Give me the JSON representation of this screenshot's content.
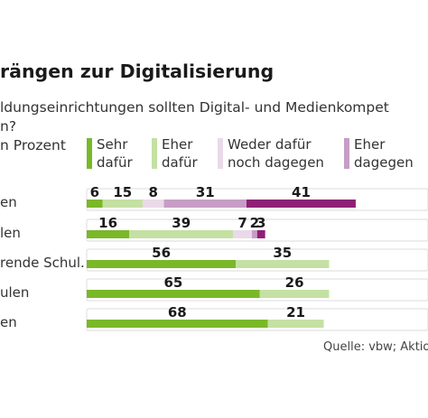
{
  "chart_data": {
    "type": "bar",
    "stacked": true,
    "orientation": "horizontal",
    "title": "rängen zur Digitalisierung",
    "subtitle_lines": [
      "ldungseinrichtungen sollten Digital- und Medienkompet",
      "n?"
    ],
    "unit_label": "n Prozent",
    "categories": [
      "en",
      "len",
      "rende Schul.",
      "ulen",
      "en"
    ],
    "series": [
      {
        "name": "Sehr\ndafür",
        "name_lines": [
          "Sehr",
          "dafür"
        ],
        "color": "#7ab829",
        "values": [
          6,
          16,
          56,
          65,
          68
        ]
      },
      {
        "name": "Eher\ndafür",
        "name_lines": [
          "Eher",
          "dafür"
        ],
        "color": "#c5e0a3",
        "values": [
          15,
          39,
          35,
          26,
          21
        ]
      },
      {
        "name": "Weder dafür\nnoch dagegen",
        "name_lines": [
          "Weder dafür",
          "noch dagegen"
        ],
        "color": "#ead9e8",
        "values": [
          8,
          7,
          null,
          null,
          null
        ]
      },
      {
        "name": "Eher\ndagegen",
        "name_lines": [
          "Eher",
          "dagegen"
        ],
        "color": "#c79dc5",
        "values": [
          31,
          2,
          null,
          null,
          null
        ]
      },
      {
        "name": "",
        "name_lines": [],
        "color": "#8f1f76",
        "values": [
          41,
          3,
          null,
          null,
          null
        ]
      }
    ],
    "value_labels": [
      [
        "6",
        "15",
        "8",
        "31",
        "41"
      ],
      [
        "16",
        "39",
        "7",
        "2",
        "3"
      ],
      [
        "56",
        "35"
      ],
      [
        "65",
        "26"
      ],
      [
        "68",
        "21"
      ]
    ],
    "xlim": [
      0,
      100
    ],
    "grid": false,
    "legend_position": "top",
    "source": "Quelle: vbw; Aktio"
  }
}
